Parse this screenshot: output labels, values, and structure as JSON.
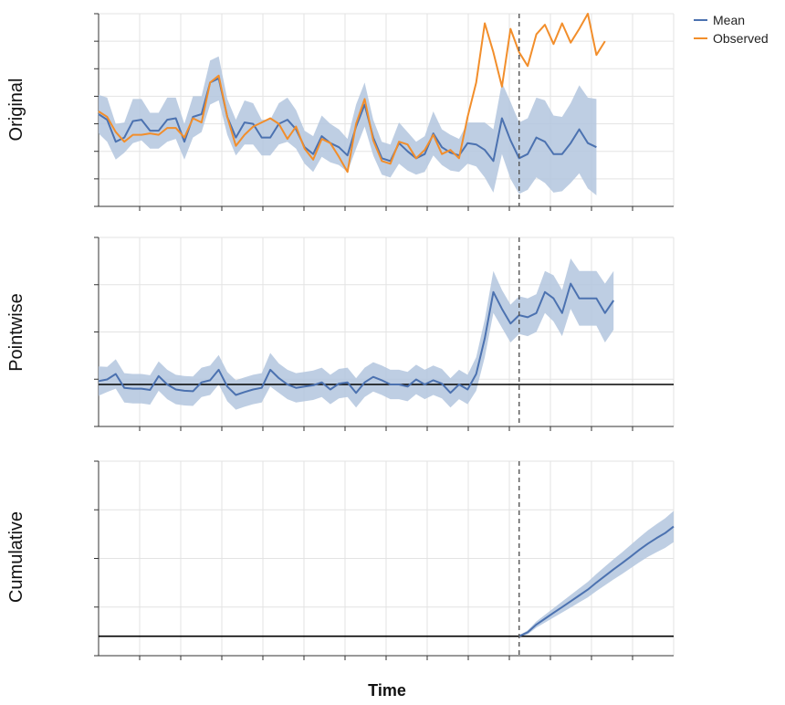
{
  "chart_data": {
    "type": "line",
    "xlabel": "Time",
    "legend": {
      "placement": "top-right",
      "entries": [
        {
          "label": "Mean",
          "color": "#4c72b0"
        },
        {
          "label": "Observed",
          "color": "#f28e2b"
        }
      ]
    },
    "colors": {
      "mean": "#4c72b0",
      "band": "#b3c6de",
      "observed": "#f28e2b",
      "grid": "#e3e3e3",
      "axis": "#333333"
    },
    "grid": true,
    "intervention_x": 49,
    "x": [
      0,
      1,
      2,
      3,
      4,
      5,
      6,
      7,
      8,
      9,
      10,
      11,
      12,
      13,
      14,
      15,
      16,
      17,
      18,
      19,
      20,
      21,
      22,
      23,
      24,
      25,
      26,
      27,
      28,
      29,
      30,
      31,
      32,
      33,
      34,
      35,
      36,
      37,
      38,
      39,
      40,
      41,
      42,
      43,
      44,
      45,
      46,
      47,
      48,
      49,
      50,
      51,
      52,
      53,
      54,
      55,
      56,
      57,
      58,
      59,
      60,
      61,
      62,
      63,
      64,
      65,
      66,
      67
    ],
    "panels": [
      {
        "name": "original",
        "label": "Original",
        "ylim": [
          0,
          14
        ],
        "zero_line": false,
        "series": [
          {
            "name": "Mean",
            "values": [
              6.7,
              6.3,
              4.7,
              5.0,
              6.2,
              6.3,
              5.5,
              5.5,
              6.3,
              6.4,
              4.7,
              6.5,
              6.7,
              9.0,
              9.3,
              6.5,
              5.0,
              6.1,
              6.0,
              5.0,
              5.0,
              6.0,
              6.3,
              5.6,
              4.3,
              3.8,
              5.1,
              4.6,
              4.3,
              3.7,
              5.8,
              7.4,
              5.0,
              3.5,
              3.3,
              4.6,
              4.0,
              3.5,
              3.8,
              5.3,
              4.3,
              3.9,
              3.7,
              4.6,
              4.5,
              4.1,
              3.3,
              6.4,
              4.8,
              3.5,
              3.8,
              5.0,
              4.7,
              3.8,
              3.8,
              4.6,
              5.6,
              4.6,
              4.3
            ]
          },
          {
            "name": "Observed",
            "values": [
              6.9,
              6.5,
              5.4,
              4.7,
              5.2,
              5.2,
              5.3,
              5.2,
              5.7,
              5.7,
              5.0,
              6.4,
              6.1,
              9.0,
              9.5,
              6.5,
              4.4,
              5.2,
              5.8,
              6.1,
              6.4,
              6.0,
              4.9,
              5.8,
              4.2,
              3.4,
              4.9,
              4.6,
              3.6,
              2.5,
              6.0,
              7.8,
              4.8,
              3.3,
              3.1,
              4.7,
              4.5,
              3.5,
              4.1,
              5.2,
              3.8,
              4.1,
              3.5,
              6.5,
              9.0,
              13.3,
              11.2,
              8.7,
              12.9,
              11.2,
              10.2,
              12.5,
              13.2,
              11.8,
              13.3,
              11.9,
              12.9,
              14.0,
              11.0,
              12.0
            ]
          }
        ],
        "band_width": [
          1.4,
          1.6,
          1.3,
          1.1,
          1.6,
          1.5,
          1.3,
          1.3,
          1.6,
          1.5,
          1.3,
          1.5,
          1.3,
          1.6,
          1.6,
          1.3,
          1.3,
          1.6,
          1.5,
          1.3,
          1.3,
          1.5,
          1.6,
          1.4,
          1.2,
          1.3,
          1.5,
          1.4,
          1.3,
          1.2,
          1.6,
          1.6,
          1.3,
          1.2,
          1.2,
          1.5,
          1.4,
          1.2,
          1.3,
          1.6,
          1.3,
          1.3,
          1.2,
          1.5,
          1.6,
          2.0,
          2.3,
          2.6,
          2.8,
          2.6,
          2.6,
          2.9,
          3.0,
          2.8,
          2.7,
          2.9,
          3.2,
          3.3,
          3.5
        ]
      },
      {
        "name": "pointwise",
        "label": "Pointwise",
        "ylim": [
          -1,
          3.5
        ],
        "zero_line": true,
        "series": [
          {
            "name": "Mean",
            "values": [
              0.08,
              0.12,
              0.25,
              -0.08,
              -0.1,
              -0.1,
              -0.13,
              0.2,
              0.0,
              -0.12,
              -0.15,
              -0.16,
              0.05,
              0.1,
              0.35,
              -0.05,
              -0.25,
              -0.18,
              -0.12,
              -0.08,
              0.35,
              0.15,
              0.0,
              -0.08,
              -0.05,
              -0.02,
              0.05,
              -0.12,
              0.02,
              0.05,
              -0.2,
              0.05,
              0.18,
              0.1,
              0.0,
              0.0,
              -0.05,
              0.12,
              0.0,
              0.1,
              0.02,
              -0.2,
              0.0,
              -0.12,
              0.25,
              1.1,
              2.2,
              1.8,
              1.45,
              1.65,
              1.6,
              1.7,
              2.2,
              2.05,
              1.7,
              2.4,
              2.05,
              2.05,
              2.05,
              1.7,
              2.0
            ]
          }
        ],
        "band_width": [
          0.35,
          0.3,
          0.35,
          0.35,
          0.35,
          0.35,
          0.35,
          0.35,
          0.35,
          0.35,
          0.35,
          0.35,
          0.35,
          0.35,
          0.35,
          0.35,
          0.35,
          0.35,
          0.35,
          0.35,
          0.4,
          0.35,
          0.35,
          0.35,
          0.35,
          0.35,
          0.35,
          0.35,
          0.35,
          0.35,
          0.35,
          0.35,
          0.35,
          0.35,
          0.35,
          0.35,
          0.35,
          0.35,
          0.35,
          0.35,
          0.35,
          0.35,
          0.35,
          0.35,
          0.4,
          0.45,
          0.5,
          0.45,
          0.45,
          0.45,
          0.45,
          0.45,
          0.5,
          0.55,
          0.55,
          0.6,
          0.65,
          0.65,
          0.65,
          0.7,
          0.7
        ]
      },
      {
        "name": "cumulative",
        "label": "Cumulative",
        "ylim": [
          -0.5,
          4.5
        ],
        "zero_line": true,
        "start_index": 49,
        "series": [
          {
            "name": "Mean",
            "values": [
              0.0,
              0.1,
              0.3,
              0.45,
              0.6,
              0.75,
              0.9,
              1.05,
              1.2,
              1.38,
              1.55,
              1.72,
              1.88,
              2.05,
              2.22,
              2.38,
              2.52,
              2.65,
              2.82
            ]
          }
        ],
        "band_width": [
          0.02,
          0.05,
          0.08,
          0.1,
          0.12,
          0.14,
          0.16,
          0.18,
          0.2,
          0.22,
          0.24,
          0.26,
          0.28,
          0.3,
          0.32,
          0.34,
          0.36,
          0.38,
          0.4
        ]
      }
    ]
  }
}
